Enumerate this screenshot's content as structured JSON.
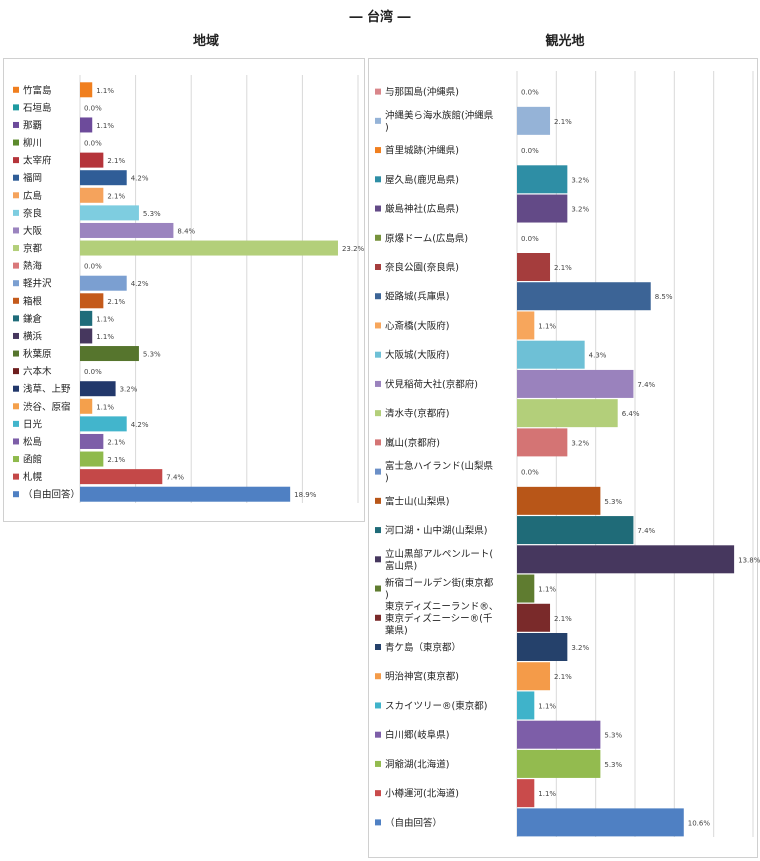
{
  "page_title": "― 台湾 ―",
  "chart_data": [
    {
      "type": "bar",
      "orientation": "horizontal",
      "title": "地域",
      "xlim": [
        0,
        25
      ],
      "grid": true,
      "legend": "left",
      "categories": [
        "竹富島",
        "石垣島",
        "那覇",
        "柳川",
        "太宰府",
        "福岡",
        "広島",
        "奈良",
        "大阪",
        "京都",
        "熱海",
        "軽井沢",
        "箱根",
        "鎌倉",
        "横浜",
        "秋葉原",
        "六本木",
        "浅草、上野",
        "渋谷、原宿",
        "日光",
        "松島",
        "函館",
        "札幌",
        "（自由回答）"
      ],
      "values": [
        1.1,
        0.0,
        1.1,
        0.0,
        2.1,
        4.2,
        2.1,
        5.3,
        8.4,
        23.2,
        0.0,
        4.2,
        2.1,
        1.1,
        1.1,
        5.3,
        0.0,
        3.2,
        1.1,
        4.2,
        2.1,
        2.1,
        7.4,
        18.9
      ],
      "labels": [
        "1.1%",
        "0.0%",
        "1.1%",
        "0.0%",
        "2.1%",
        "4.2%",
        "2.1%",
        "5.3%",
        "8.4%",
        "23.2%",
        "0.0%",
        "4.2%",
        "2.1%",
        "1.1%",
        "1.1%",
        "5.3%",
        "0.0%",
        "3.2%",
        "1.1%",
        "4.2%",
        "2.1%",
        "2.1%",
        "7.4%",
        "18.9%"
      ],
      "colors": [
        "#f07f1f",
        "#1e9aa0",
        "#6d4b9b",
        "#5c8a2c",
        "#b5343a",
        "#2f5d97",
        "#f5a35c",
        "#7ecde0",
        "#9b84bf",
        "#b3cf7a",
        "#d9787a",
        "#7b9fd1",
        "#c45a1b",
        "#1f6c7a",
        "#46375e",
        "#56752d",
        "#6e1e1e",
        "#22386b",
        "#f4a04c",
        "#42b5cc",
        "#7d5ea8",
        "#8fba4c",
        "#c44848",
        "#4f80c3"
      ]
    },
    {
      "type": "bar",
      "orientation": "horizontal",
      "title": "観光地",
      "xlim": [
        0,
        15
      ],
      "grid": true,
      "legend": "left",
      "categories": [
        "与那国島(沖縄県)",
        "沖縄美ら海水族館(沖縄県)",
        "首里城跡(沖縄県)",
        "屋久島(鹿児島県)",
        "厳島神社(広島県)",
        "原爆ドーム(広島県)",
        "奈良公園(奈良県)",
        "姫路城(兵庫県)",
        "心斎橋(大阪府)",
        "大阪城(大阪府)",
        "伏見稲荷大社(京都府)",
        "清水寺(京都府)",
        "嵐山(京都府)",
        "富士急ハイランド(山梨県)",
        "富士山(山梨県)",
        "河口湖・山中湖(山梨県)",
        "立山黒部アルペンルート(富山県)",
        "新宿ゴールデン街(東京都)",
        "東京ディズニーランド®、東京ディズニーシー®(千葉県)",
        "青ケ島（東京都）",
        "明治神宮(東京都)",
        "スカイツリー®(東京都)",
        "白川郷(岐阜県)",
        "洞爺湖(北海道)",
        "小樽運河(北海道)",
        "（自由回答）"
      ],
      "values": [
        0.0,
        2.1,
        0.0,
        3.2,
        3.2,
        0.0,
        2.1,
        8.5,
        1.1,
        4.3,
        7.4,
        6.4,
        3.2,
        0.0,
        5.3,
        7.4,
        13.8,
        1.1,
        2.1,
        3.2,
        2.1,
        1.1,
        5.3,
        5.3,
        1.1,
        10.6
      ],
      "labels": [
        "0.0%",
        "2.1%",
        "0.0%",
        "3.2%",
        "3.2%",
        "0.0%",
        "2.1%",
        "8.5%",
        "1.1%",
        "4.3%",
        "7.4%",
        "6.4%",
        "3.2%",
        "0.0%",
        "5.3%",
        "7.4%",
        "13.8%",
        "1.1%",
        "2.1%",
        "3.2%",
        "2.1%",
        "1.1%",
        "5.3%",
        "5.3%",
        "1.1%",
        "10.6%"
      ],
      "colors": [
        "#d9868a",
        "#95b3d7",
        "#f07f1f",
        "#2e8ea5",
        "#634a87",
        "#76923c",
        "#a53d3d",
        "#3c6496",
        "#f7a65c",
        "#6ec0d6",
        "#9a82bd",
        "#b3cf7a",
        "#d47474",
        "#6b8fc7",
        "#b85618",
        "#1f6b78",
        "#46375e",
        "#5f7c30",
        "#7a2a2a",
        "#25416b",
        "#f49b49",
        "#3fb3ca",
        "#7d5ea8",
        "#93bb4f",
        "#c94b4b",
        "#4f80c3"
      ]
    }
  ]
}
